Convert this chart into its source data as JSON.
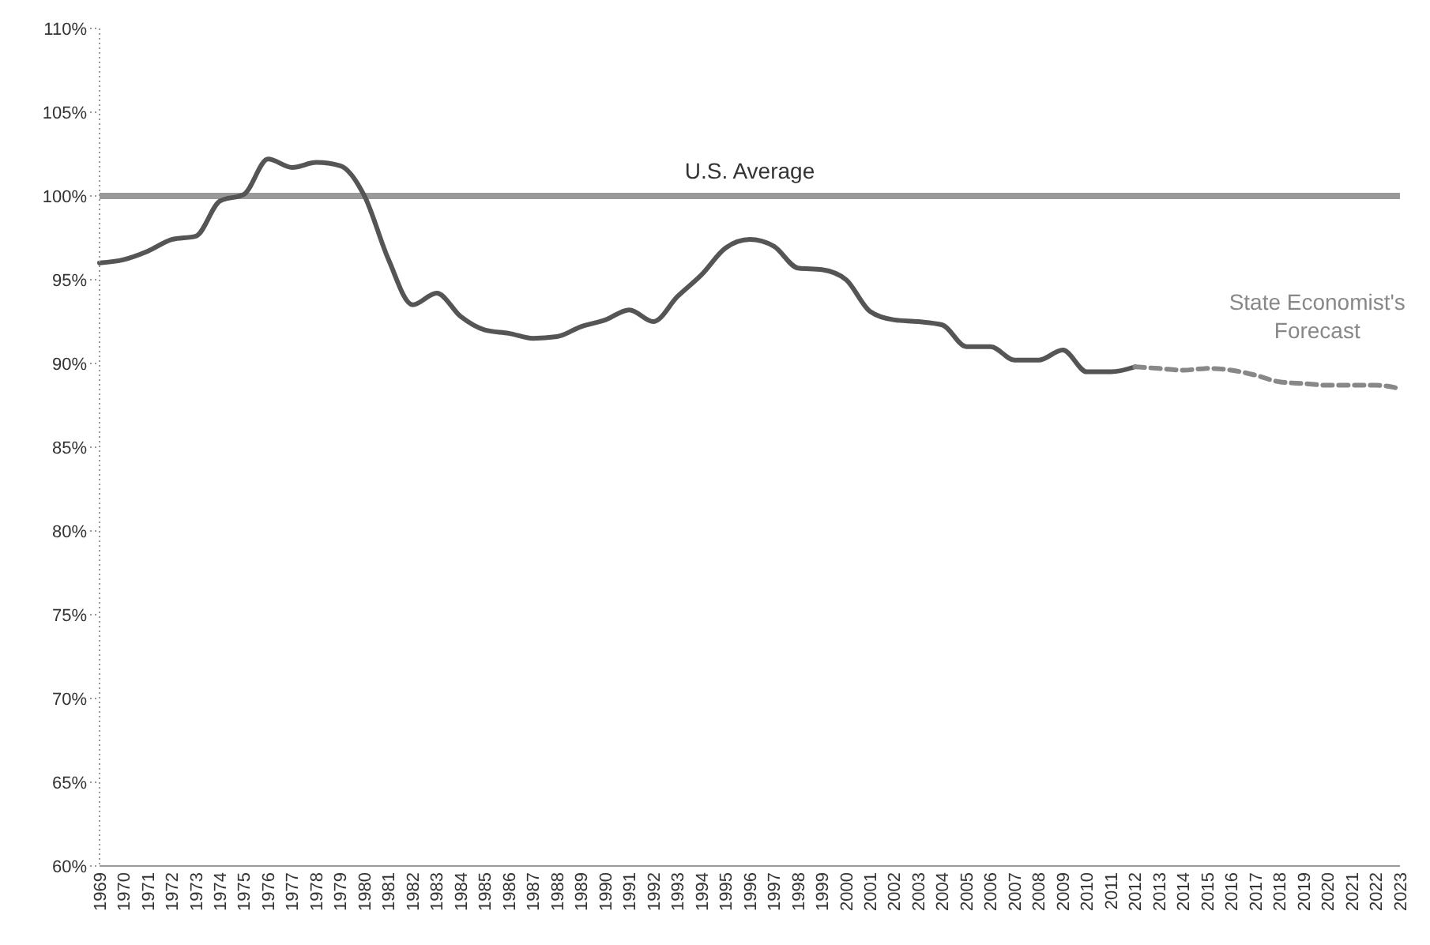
{
  "chart_data": {
    "type": "line",
    "categories": [
      "1969",
      "1970",
      "1971",
      "1972",
      "1973",
      "1974",
      "1975",
      "1976",
      "1977",
      "1978",
      "1979",
      "1980",
      "1981",
      "1982",
      "1983",
      "1984",
      "1985",
      "1986",
      "1987",
      "1988",
      "1989",
      "1990",
      "1991",
      "1992",
      "1993",
      "1994",
      "1995",
      "1996",
      "1997",
      "1998",
      "1999",
      "2000",
      "2001",
      "2002",
      "2003",
      "2004",
      "2005",
      "2006",
      "2007",
      "2008",
      "2009",
      "2010",
      "2011",
      "2012",
      "2013",
      "2014",
      "2015",
      "2016",
      "2017",
      "2018",
      "2019",
      "2020",
      "2021",
      "2022",
      "2023"
    ],
    "series": [
      {
        "color": "#555555",
        "line_style": "solid",
        "values": [
          96.0,
          96.2,
          96.7,
          97.4,
          97.6,
          99.7,
          100.1,
          102.2,
          101.7,
          102.0,
          101.8,
          100.0,
          96.2,
          93.5,
          94.2,
          92.8,
          92.0,
          91.8,
          91.5,
          91.6,
          92.2,
          92.6,
          93.2,
          92.5,
          94.0,
          95.3,
          96.9,
          97.4,
          97.0,
          95.7,
          95.6,
          95.0,
          93.1,
          92.6,
          92.5,
          92.3,
          91.0,
          91.0,
          90.2,
          90.2,
          90.8,
          89.5,
          89.5,
          89.8,
          null,
          null,
          null,
          null,
          null,
          null,
          null,
          null,
          null,
          null,
          null
        ]
      },
      {
        "name": "State Economist's Forecast",
        "color": "#888888",
        "line_style": "dashed",
        "values": [
          null,
          null,
          null,
          null,
          null,
          null,
          null,
          null,
          null,
          null,
          null,
          null,
          null,
          null,
          null,
          null,
          null,
          null,
          null,
          null,
          null,
          null,
          null,
          null,
          null,
          null,
          null,
          null,
          null,
          null,
          null,
          null,
          null,
          null,
          null,
          null,
          null,
          null,
          null,
          null,
          null,
          null,
          null,
          89.8,
          89.7,
          89.6,
          89.7,
          89.6,
          89.3,
          88.9,
          88.8,
          88.7,
          88.7,
          88.7,
          88.5
        ]
      }
    ],
    "ylim": [
      60,
      110
    ],
    "yticks": [
      {
        "value": 60,
        "label": "60%"
      },
      {
        "value": 65,
        "label": "65%"
      },
      {
        "value": 70,
        "label": "70%"
      },
      {
        "value": 75,
        "label": "75%"
      },
      {
        "value": 80,
        "label": "80%"
      },
      {
        "value": 85,
        "label": "85%"
      },
      {
        "value": 90,
        "label": "90%"
      },
      {
        "value": 95,
        "label": "95%"
      },
      {
        "value": 100,
        "label": "100%"
      },
      {
        "value": 105,
        "label": "105%"
      },
      {
        "value": 110,
        "label": "110%"
      }
    ],
    "ref_lines": [
      {
        "axis": "y",
        "value": 100,
        "label": "U.S. Average",
        "color": "#999999"
      }
    ],
    "grid": false,
    "legend": false,
    "marker": "none"
  }
}
